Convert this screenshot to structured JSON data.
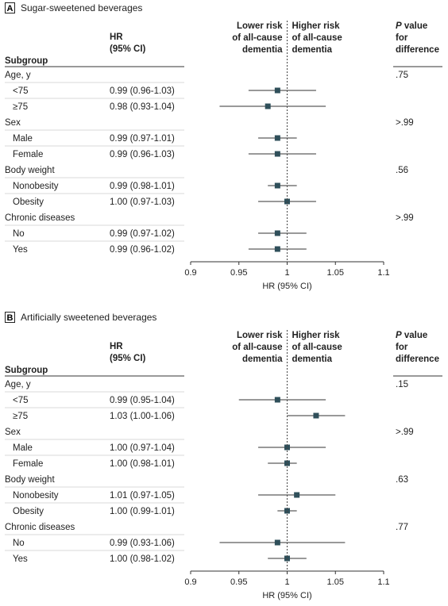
{
  "chart_data": [
    {
      "type": "forest",
      "panel_label": "A",
      "title": "Sugar-sweetened beverages",
      "columns": {
        "subgroup": "Subgroup",
        "hr_line1": "HR",
        "hr_line2": "(95% CI)",
        "p_line1": "P",
        "p_line2": " value",
        "p_line3": "for",
        "p_line4": "difference"
      },
      "direction_left": [
        "Lower risk",
        "of all-cause",
        "dementia"
      ],
      "direction_right": [
        "Higher risk",
        "of all-cause",
        "dementia"
      ],
      "xlabel": "HR (95% CI)",
      "xlim": [
        0.9,
        1.1
      ],
      "ticks": [
        {
          "value": 0.9,
          "label": "0.9"
        },
        {
          "value": 0.95,
          "label": "0.95"
        },
        {
          "value": 1,
          "label": "1"
        },
        {
          "value": 1.05,
          "label": "1.05"
        },
        {
          "value": 1.1,
          "label": "1.1"
        }
      ],
      "groups": [
        {
          "name": "Age, y",
          "p": ".75",
          "rows": [
            {
              "label": "<75",
              "hr_text": "0.99 (0.96-1.03)",
              "hr": 0.99,
              "lo": 0.96,
              "hi": 1.03
            },
            {
              "label": "≥75",
              "hr_text": "0.98 (0.93-1.04)",
              "hr": 0.98,
              "lo": 0.93,
              "hi": 1.04
            }
          ]
        },
        {
          "name": "Sex",
          "p": ">.99",
          "rows": [
            {
              "label": "Male",
              "hr_text": "0.99 (0.97-1.01)",
              "hr": 0.99,
              "lo": 0.97,
              "hi": 1.01
            },
            {
              "label": "Female",
              "hr_text": "0.99 (0.96-1.03)",
              "hr": 0.99,
              "lo": 0.96,
              "hi": 1.03
            }
          ]
        },
        {
          "name": "Body weight",
          "p": ".56",
          "rows": [
            {
              "label": "Nonobesity",
              "hr_text": "0.99 (0.98-1.01)",
              "hr": 0.99,
              "lo": 0.98,
              "hi": 1.01
            },
            {
              "label": "Obesity",
              "hr_text": "1.00 (0.97-1.03)",
              "hr": 1.0,
              "lo": 0.97,
              "hi": 1.03
            }
          ]
        },
        {
          "name": "Chronic diseases",
          "p": ">.99",
          "rows": [
            {
              "label": "No",
              "hr_text": "0.99 (0.97-1.02)",
              "hr": 0.99,
              "lo": 0.97,
              "hi": 1.02
            },
            {
              "label": "Yes",
              "hr_text": "0.99 (0.96-1.02)",
              "hr": 0.99,
              "lo": 0.96,
              "hi": 1.02
            }
          ]
        }
      ]
    },
    {
      "type": "forest",
      "panel_label": "B",
      "title": "Artificially sweetened beverages",
      "columns": {
        "subgroup": "Subgroup",
        "hr_line1": "HR",
        "hr_line2": "(95% CI)",
        "p_line1": "P",
        "p_line2": " value",
        "p_line3": "for",
        "p_line4": "difference"
      },
      "direction_left": [
        "Lower risk",
        "of all-cause",
        "dementia"
      ],
      "direction_right": [
        "Higher risk",
        "of all-cause",
        "dementia"
      ],
      "xlabel": "HR (95% CI)",
      "xlim": [
        0.9,
        1.1
      ],
      "ticks": [
        {
          "value": 0.9,
          "label": "0.9"
        },
        {
          "value": 0.95,
          "label": "0.95"
        },
        {
          "value": 1,
          "label": "1"
        },
        {
          "value": 1.05,
          "label": "1.05"
        },
        {
          "value": 1.1,
          "label": "1.1"
        }
      ],
      "groups": [
        {
          "name": "Age, y",
          "p": ".15",
          "rows": [
            {
              "label": "<75",
              "hr_text": "0.99 (0.95-1.04)",
              "hr": 0.99,
              "lo": 0.95,
              "hi": 1.04
            },
            {
              "label": "≥75",
              "hr_text": "1.03 (1.00-1.06)",
              "hr": 1.03,
              "lo": 1.0,
              "hi": 1.06
            }
          ]
        },
        {
          "name": "Sex",
          "p": ">.99",
          "rows": [
            {
              "label": "Male",
              "hr_text": "1.00 (0.97-1.04)",
              "hr": 1.0,
              "lo": 0.97,
              "hi": 1.04
            },
            {
              "label": "Female",
              "hr_text": "1.00 (0.98-1.01)",
              "hr": 1.0,
              "lo": 0.98,
              "hi": 1.01
            }
          ]
        },
        {
          "name": "Body weight",
          "p": ".63",
          "rows": [
            {
              "label": "Nonobesity",
              "hr_text": "1.01 (0.97-1.05)",
              "hr": 1.01,
              "lo": 0.97,
              "hi": 1.05
            },
            {
              "label": "Obesity",
              "hr_text": "1.00 (0.99-1.01)",
              "hr": 1.0,
              "lo": 0.99,
              "hi": 1.01
            }
          ]
        },
        {
          "name": "Chronic diseases",
          "p": ".77",
          "rows": [
            {
              "label": "No",
              "hr_text": "0.99 (0.93-1.06)",
              "hr": 0.99,
              "lo": 0.93,
              "hi": 1.06
            },
            {
              "label": "Yes",
              "hr_text": "1.00 (0.98-1.02)",
              "hr": 1.0,
              "lo": 0.98,
              "hi": 1.02
            }
          ]
        }
      ]
    }
  ],
  "colors": {
    "marker": "#2f4f5a",
    "ci_line": "#333333",
    "rule": "#333333",
    "band": "#d9d9d9",
    "panel_box": "#222222"
  }
}
